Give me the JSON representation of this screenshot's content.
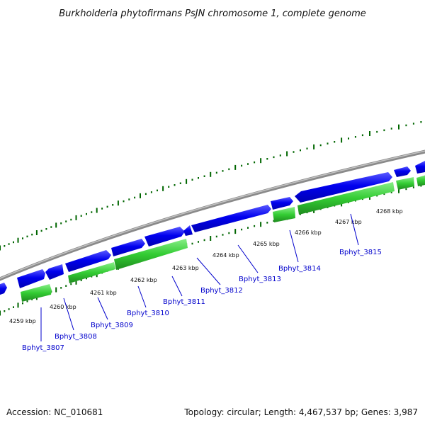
{
  "title": "Burkholderia phytofirmans PsJN chromosome 1, complete genome",
  "footer": {
    "accession": "Accession: NC_010681",
    "summary": "Topology: circular; Length: 4,467,537 bp; Genes: 3,987"
  },
  "colors": {
    "forward_gene": "#0000ee",
    "reverse_gene": "#33cc33",
    "backbone": "#888888",
    "tick_marks": "#006600",
    "gene_label": "#0000cc"
  },
  "kbp_labels": [
    "4259 kbp",
    "4260 kbp",
    "4261 kbp",
    "4262 kbp",
    "4263 kbp",
    "4264 kbp",
    "4265 kbp",
    "4266 kbp",
    "4267 kbp",
    "4268 kbp"
  ],
  "gene_labels": [
    "Bphyt_3807",
    "Bphyt_3808",
    "Bphyt_3809",
    "Bphyt_3810",
    "Bphyt_3811",
    "Bphyt_3812",
    "Bphyt_3813",
    "Bphyt_3814",
    "Bphyt_3815"
  ]
}
